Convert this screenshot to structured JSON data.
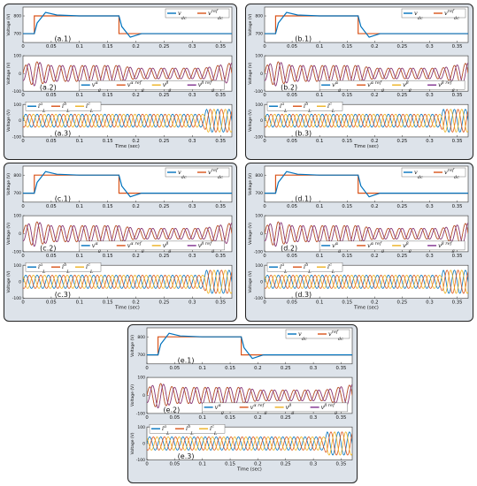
{
  "figure": {
    "panels": [
      {
        "id": "a",
        "subplots": [
          {
            "label": "(a.1)",
            "ylabel": "Voltage (V)",
            "yticks": [
              "800",
              "700"
            ],
            "legend": [
              "v_dc",
              "v_dc^ref"
            ],
            "xticks": [
              "0",
              "0.05",
              "0.1",
              "0.15",
              "0.2",
              "0.25",
              "0.3",
              "0.35"
            ]
          },
          {
            "label": "(a.2)",
            "ylabel": "Voltage (V)",
            "yticks": [
              "100",
              "0",
              "-100"
            ],
            "legend": [
              "v_g^α",
              "v_g^α ref",
              "v_g^β",
              "v_g^β ref"
            ],
            "xticks": [
              "0",
              "0.05",
              "0.1",
              "0.15",
              "0.2",
              "0.25",
              "0.3",
              "0.35"
            ]
          },
          {
            "label": "(a.3)",
            "ylabel": "Voltage (V)",
            "yticks": [
              "100",
              "0",
              "-100"
            ],
            "legend": [
              "i_L^a",
              "i_L^b",
              "i_L^c"
            ],
            "xticks": [
              "0",
              "0.05",
              "0.1",
              "0.15",
              "0.2",
              "0.25",
              "0.3",
              "0.35"
            ],
            "xlabel": "Time (sec)"
          }
        ]
      },
      {
        "id": "b",
        "subplots": [
          {
            "label": "(b.1)",
            "ylabel": "Voltage (V)",
            "yticks": [
              "800",
              "700"
            ],
            "legend": [
              "v_dc",
              "v_dc^ref"
            ],
            "xticks": [
              "0",
              "0.05",
              "0.1",
              "0.15",
              "0.2",
              "0.25",
              "0.3",
              "0.35"
            ]
          },
          {
            "label": "(b.2)",
            "ylabel": "Voltage (V)",
            "yticks": [
              "100",
              "0",
              "-100"
            ],
            "legend": [
              "v_g^α",
              "v_g^α ref",
              "v_g^β",
              "v_g^β ref"
            ],
            "xticks": [
              "0",
              "0.05",
              "0.1",
              "0.15",
              "0.2",
              "0.25",
              "0.3",
              "0.35"
            ]
          },
          {
            "label": "(b.3)",
            "ylabel": "Voltage (V)",
            "yticks": [
              "100",
              "0",
              "-100"
            ],
            "legend": [
              "i_L^a",
              "i_L^b",
              "i_L^c"
            ],
            "xticks": [
              "0",
              "0.05",
              "0.1",
              "0.15",
              "0.2",
              "0.25",
              "0.3",
              "0.35"
            ],
            "xlabel": "Time (sec)"
          }
        ]
      },
      {
        "id": "c",
        "subplots": [
          {
            "label": "(c.1)",
            "ylabel": "Voltage (V)",
            "yticks": [
              "800",
              "700"
            ],
            "legend": [
              "v_dc",
              "v_dc^ref"
            ],
            "xticks": [
              "0",
              "0.05",
              "0.1",
              "0.15",
              "0.2",
              "0.25",
              "0.3",
              "0.35"
            ]
          },
          {
            "label": "(c.2)",
            "ylabel": "Voltage (V)",
            "yticks": [
              "100",
              "0",
              "-100"
            ],
            "legend": [
              "v_g^α",
              "v_g^α ref",
              "v_g^β",
              "v_g^β ref"
            ],
            "xticks": [
              "0",
              "0.05",
              "0.1",
              "0.15",
              "0.2",
              "0.25",
              "0.3",
              "0.35"
            ]
          },
          {
            "label": "(c.3)",
            "ylabel": "Voltage (V)",
            "yticks": [
              "100",
              "0",
              "-100"
            ],
            "legend": [
              "i_L^a",
              "i_L^b",
              "i_L^c"
            ],
            "xticks": [
              "0",
              "0.05",
              "0.1",
              "0.15",
              "0.2",
              "0.25",
              "0.3",
              "0.35"
            ],
            "xlabel": "Time (sec)"
          }
        ]
      },
      {
        "id": "d",
        "subplots": [
          {
            "label": "(d.1)",
            "ylabel": "Voltage (V)",
            "yticks": [
              "800",
              "700"
            ],
            "legend": [
              "v_dc",
              "v_dc^ref"
            ],
            "xticks": [
              "0",
              "0.05",
              "0.1",
              "0.15",
              "0.2",
              "0.25",
              "0.3",
              "0.35"
            ]
          },
          {
            "label": "(d.2)",
            "ylabel": "Voltage (V)",
            "yticks": [
              "100",
              "0",
              "-100"
            ],
            "legend": [
              "v_g^α",
              "v_g^α ref",
              "v_g^β",
              "v_g^β ref"
            ],
            "xticks": [
              "0",
              "0.05",
              "0.1",
              "0.15",
              "0.2",
              "0.25",
              "0.3",
              "0.35"
            ]
          },
          {
            "label": "(d.3)",
            "ylabel": "Voltage (V)",
            "yticks": [
              "100",
              "0",
              "-100"
            ],
            "legend": [
              "i_L^a",
              "i_L^b",
              "i_L^c"
            ],
            "xticks": [
              "0",
              "0.05",
              "0.1",
              "0.15",
              "0.2",
              "0.25",
              "0.3",
              "0.35"
            ],
            "xlabel": "Time (sec)"
          }
        ]
      },
      {
        "id": "e",
        "subplots": [
          {
            "label": "(e.1)",
            "ylabel": "Voltage (V)",
            "yticks": [
              "800",
              "700"
            ],
            "legend": [
              "v_dc",
              "v_dc^ref"
            ],
            "xticks": [
              "0",
              "0.05",
              "0.1",
              "0.15",
              "0.2",
              "0.25",
              "0.3",
              "0.35"
            ]
          },
          {
            "label": "(e.2)",
            "ylabel": "Voltage (V)",
            "yticks": [
              "100",
              "0",
              "-100"
            ],
            "legend": [
              "v_g^α",
              "v_g^α ref",
              "v_g^β",
              "v_g^β ref"
            ],
            "xticks": [
              "0",
              "0.05",
              "0.1",
              "0.15",
              "0.2",
              "0.25",
              "0.3",
              "0.35"
            ]
          },
          {
            "label": "(e.3)",
            "ylabel": "Voltage (V)",
            "yticks": [
              "100",
              "0",
              "-100"
            ],
            "legend": [
              "i_L^a",
              "i_L^b",
              "i_L^c"
            ],
            "xticks": [
              "0",
              "0.05",
              "0.1",
              "0.15",
              "0.2",
              "0.25",
              "0.3",
              "0.35"
            ],
            "xlabel": "Time (sec)"
          }
        ]
      }
    ]
  },
  "colors": {
    "blue": "#0072bd",
    "orange": "#d95319",
    "yellow": "#edb120",
    "purple": "#7e2f8e",
    "panel_bg": "#dde3ea",
    "plot_bg": "#ffffff"
  },
  "chart_data": [
    {
      "type": "line",
      "panels": [
        "a",
        "b",
        "c",
        "d",
        "e"
      ],
      "subplot": 1,
      "xlim": [
        0,
        0.37
      ],
      "ylim": [
        650,
        850
      ],
      "series": [
        {
          "name": "v_dc",
          "x": [
            0,
            0.02,
            0.025,
            0.04,
            0.06,
            0.1,
            0.17,
            0.175,
            0.19,
            0.21,
            0.25,
            0.3,
            0.37
          ],
          "y": [
            700,
            700,
            760,
            820,
            805,
            800,
            800,
            740,
            680,
            700,
            700,
            700,
            700
          ]
        },
        {
          "name": "v_dc^ref",
          "x": [
            0,
            0.02,
            0.02,
            0.17,
            0.17,
            0.37
          ],
          "y": [
            700,
            700,
            800,
            800,
            700,
            700
          ]
        }
      ]
    },
    {
      "type": "line",
      "panels": [
        "a",
        "b",
        "c",
        "d",
        "e"
      ],
      "subplot": 2,
      "xlim": [
        0,
        0.37
      ],
      "ylim": [
        -100,
        100
      ],
      "frequency_hz": 50,
      "amplitude_profile": {
        "x": [
          0,
          0.02,
          0.05,
          0.17,
          0.2,
          0.32,
          0.37
        ],
        "y": [
          40,
          70,
          45,
          45,
          30,
          30,
          60
        ]
      },
      "series": [
        {
          "name": "v_g^α"
        },
        {
          "name": "v_g^α ref"
        },
        {
          "name": "v_g^β"
        },
        {
          "name": "v_g^β ref"
        }
      ]
    },
    {
      "type": "line",
      "panels": [
        "a",
        "b",
        "c",
        "d",
        "e"
      ],
      "subplot": 3,
      "xlim": [
        0,
        0.37
      ],
      "ylim": [
        -100,
        100
      ],
      "frequency_hz": 50,
      "amplitude_profile": {
        "x": [
          0,
          0.32,
          0.325,
          0.37
        ],
        "y": [
          40,
          40,
          70,
          70
        ]
      },
      "series": [
        {
          "name": "i_L^a"
        },
        {
          "name": "i_L^b"
        },
        {
          "name": "i_L^c"
        }
      ]
    }
  ]
}
